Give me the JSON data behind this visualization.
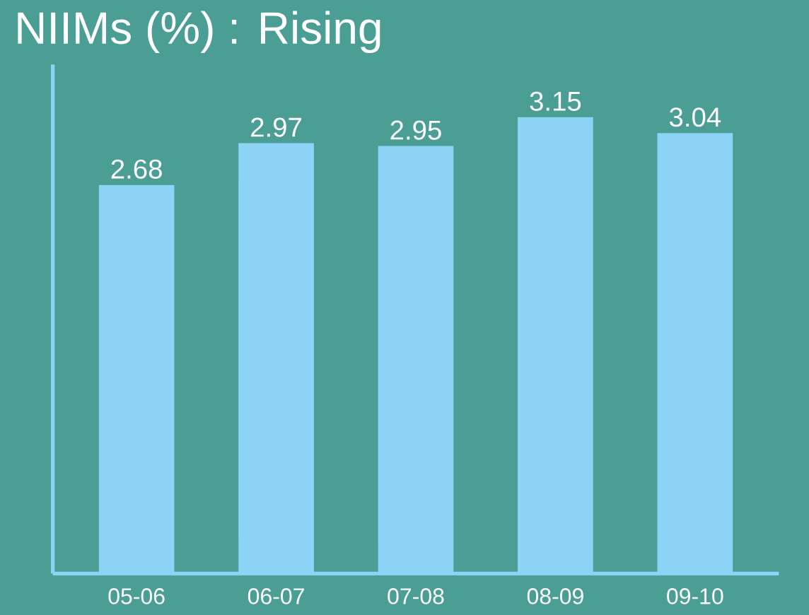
{
  "chart_data": {
    "type": "bar",
    "title": "NIIMs (%) : Rising",
    "categories": [
      "05-06",
      "06-07",
      "07-08",
      "08-09",
      "09-10"
    ],
    "values": [
      2.68,
      2.97,
      2.95,
      3.15,
      3.04
    ],
    "color": "#8dd3f5",
    "data_labels": true,
    "tick_labels": "x"
  }
}
